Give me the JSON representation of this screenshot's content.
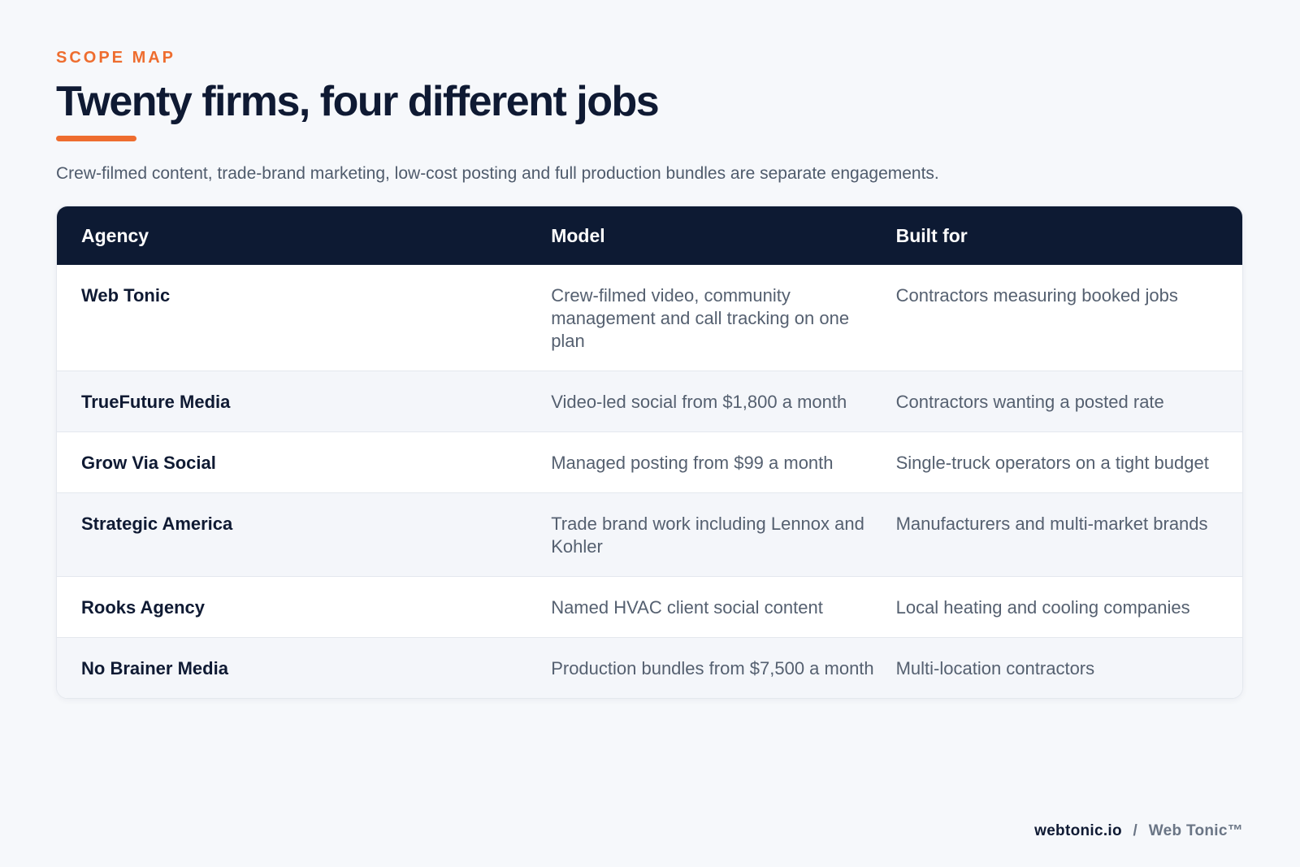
{
  "eyebrow": "SCOPE MAP",
  "title": "Twenty firms, four different jobs",
  "subtitle": "Crew-filmed content, trade-brand marketing, low-cost posting and full production bundles are separate engagements.",
  "table": {
    "headers": {
      "agency": "Agency",
      "model": "Model",
      "built_for": "Built for"
    },
    "rows": [
      {
        "agency": "Web Tonic",
        "model": "Crew-filmed video, community management and call tracking on one plan",
        "built_for": "Contractors measuring booked jobs"
      },
      {
        "agency": "TrueFuture Media",
        "model": "Video-led social from $1,800 a month",
        "built_for": "Contractors wanting a posted rate"
      },
      {
        "agency": "Grow Via Social",
        "model": "Managed posting from $99 a month",
        "built_for": "Single-truck operators on a tight budget"
      },
      {
        "agency": "Strategic America",
        "model": "Trade brand work including Lennox and Kohler",
        "built_for": "Manufacturers and multi-market brands"
      },
      {
        "agency": "Rooks Agency",
        "model": "Named HVAC client social content",
        "built_for": "Local heating and cooling companies"
      },
      {
        "agency": "No Brainer Media",
        "model": "Production bundles from $7,500 a month",
        "built_for": "Multi-location contractors"
      }
    ]
  },
  "footer": {
    "site": "webtonic.io",
    "separator": "/",
    "brand": "Web Tonic™"
  },
  "colors": {
    "accent": "#ee6d2f",
    "navy": "#0d1a33",
    "background": "#f6f8fb"
  }
}
